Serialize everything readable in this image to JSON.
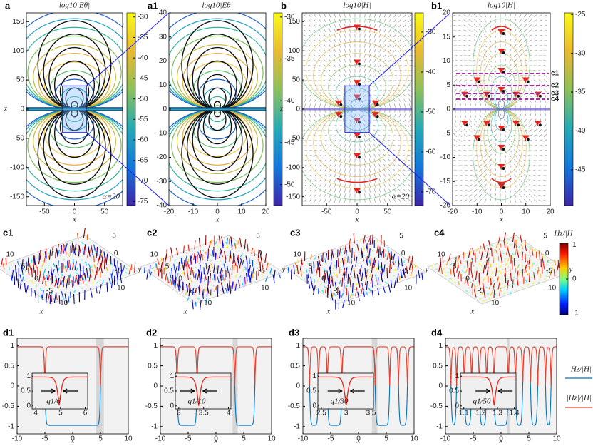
{
  "top": [
    {
      "label": "a",
      "title": "log10|Eθ|",
      "xlabel": "x",
      "ylabel": "z",
      "xlim": [
        -80,
        80
      ],
      "xticks": [
        -50,
        0,
        50
      ],
      "ylim": [
        -165,
        165
      ],
      "yticks": [
        150,
        100,
        50,
        0,
        -50,
        -100,
        -150
      ],
      "annotation": "α=20",
      "colorbar": {
        "lim": [
          -29,
          -76
        ],
        "ticks": [
          -30,
          -35,
          -40,
          -45,
          -50,
          -55,
          -60,
          -65,
          -70,
          -75
        ]
      }
    },
    {
      "label": "a1",
      "title": "log10|Eθ|",
      "xlabel": "x",
      "xlim": [
        -20,
        20
      ],
      "xticks": [
        -20,
        -10,
        0,
        10,
        20
      ],
      "ylim": [
        -40,
        40
      ],
      "yticks": [
        40,
        30,
        20,
        10,
        0,
        -10,
        -20,
        -30,
        -40
      ],
      "colorbar": {
        "lim": [
          -29.5,
          -52.5
        ],
        "ticks": [
          -30,
          -35,
          -40,
          -45,
          -50
        ]
      }
    },
    {
      "label": "b",
      "title": "log10|H|",
      "xlabel": "x",
      "ylabel": "z",
      "xlim": [
        -90,
        90
      ],
      "xticks": [
        -50,
        0,
        50
      ],
      "ylim": [
        -165,
        165
      ],
      "yticks": [
        150,
        100,
        50,
        0,
        -50,
        -100,
        -150
      ],
      "annotation": "α=20",
      "colorbar": {
        "lim": [
          -25.2,
          -73.4
        ],
        "ticks": [
          -30,
          -40,
          -50,
          -60,
          -70
        ]
      }
    },
    {
      "label": "b1",
      "title": "log10|H|",
      "xlabel": "x",
      "xlim": [
        -20,
        20
      ],
      "xticks": [
        -20,
        -10,
        0,
        10,
        20
      ],
      "ylim": [
        -20,
        20
      ],
      "yticks": [
        20,
        15,
        10,
        5,
        0,
        -5,
        -10,
        -15,
        -20
      ],
      "colorbar": {
        "lim": [
          -24.8,
          -49.6
        ],
        "ticks": [
          -25,
          -30,
          -35,
          -40,
          -45
        ]
      }
    }
  ],
  "b1_cuts": [
    "c1",
    "c2",
    "c3",
    "c4"
  ],
  "middle": {
    "panels": [
      {
        "label": "c1",
        "xlabel": "x",
        "ylabel": "y",
        "xticks": [
          10,
          5,
          0,
          -5,
          -10
        ],
        "yticks": [
          5,
          0,
          -5,
          -10
        ]
      },
      {
        "label": "c2",
        "xlabel": "x",
        "ylabel": "y",
        "xticks": [
          10,
          5,
          0,
          -5,
          -10
        ],
        "yticks": [
          5,
          0,
          -5,
          -10
        ]
      },
      {
        "label": "c3",
        "xlabel": "x",
        "ylabel": "y",
        "xticks": [
          10,
          5,
          0,
          -5,
          -10
        ],
        "yticks": [
          5,
          0,
          -5,
          -10
        ]
      },
      {
        "label": "c4",
        "xlabel": "x",
        "ylabel": "y",
        "xticks": [
          10,
          5,
          0,
          -5,
          -10
        ],
        "yticks": [
          5,
          0,
          -5,
          -10
        ]
      }
    ],
    "colorbar": {
      "title": "Hz/|H|",
      "lim": [
        1.05,
        -1.05
      ],
      "ticks": [
        1,
        0,
        -1
      ]
    }
  },
  "bottom": {
    "panels": [
      {
        "label": "d1",
        "xlabel": "x",
        "xlim": [
          -10,
          10
        ],
        "xticks": [
          -10,
          -5,
          0,
          5,
          10
        ],
        "ylim": [
          -1.18,
          1.18
        ],
        "yticks": [
          1,
          0.5,
          0,
          -0.5,
          -1
        ],
        "inset": {
          "xlim": [
            3.85,
            6.1
          ],
          "xticks": [
            4,
            5,
            6
          ],
          "ylim": [
            -0.1,
            1.1
          ],
          "yticks": [
            0,
            0.5,
            1
          ],
          "annotation": "q1/6"
        }
      },
      {
        "label": "d2",
        "xlabel": "x",
        "xlim": [
          -10,
          10
        ],
        "xticks": [
          -10,
          -5,
          0,
          5,
          10
        ],
        "ylim": [
          -1.18,
          1.18
        ],
        "yticks": [
          1,
          0.5,
          0,
          -0.5,
          -1
        ],
        "inset": {
          "xlim": [
            2.93,
            4.05
          ],
          "xticks": [
            3,
            3.5,
            4
          ],
          "ylim": [
            -0.1,
            1.1
          ],
          "yticks": [
            0,
            0.5,
            1
          ],
          "annotation": "q1/10"
        }
      },
      {
        "label": "d3",
        "xlabel": "x",
        "xlim": [
          -10,
          10
        ],
        "xticks": [
          -10,
          -5,
          0,
          5,
          10
        ],
        "ylim": [
          -1.18,
          1.18
        ],
        "yticks": [
          1,
          0.5,
          0,
          -0.5,
          -1
        ],
        "inset": {
          "xlim": [
            2.43,
            3.55
          ],
          "xticks": [
            2.5,
            3,
            3.5
          ],
          "ylim": [
            -0.1,
            1.1
          ],
          "yticks": [
            0,
            0.5,
            1
          ],
          "annotation": "q1/30"
        }
      },
      {
        "label": "d4",
        "xlabel": "x",
        "xlim": [
          -10,
          10
        ],
        "xticks": [
          -10,
          -5,
          0,
          5,
          10
        ],
        "ylim": [
          -1.18,
          1.18
        ],
        "yticks": [
          1,
          0.5,
          0,
          -0.5,
          -1
        ],
        "inset": {
          "xlim": [
            1.08,
            1.41
          ],
          "xticks": [
            1.1,
            1.2,
            1.3,
            1.4
          ],
          "ylim": [
            -0.1,
            1.1
          ],
          "yticks": [
            0,
            0.5,
            1
          ],
          "annotation": "q1/50"
        }
      }
    ],
    "legend": [
      "Hz/|H|",
      "|Hz|/|H|"
    ]
  }
}
